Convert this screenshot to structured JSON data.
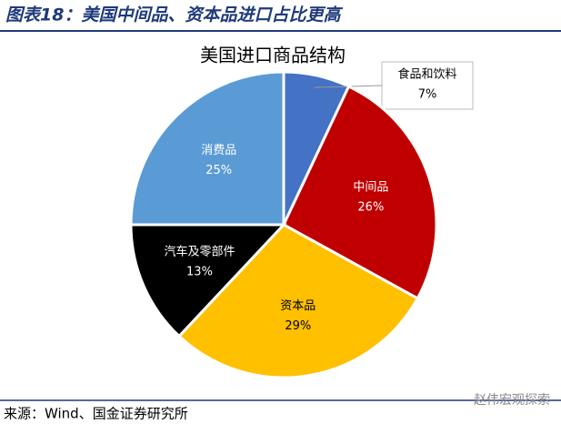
{
  "figure_title": "图表18：美国中间品、资本品进口占比更高",
  "chart_data": {
    "type": "pie",
    "title": "美国进口商品结构",
    "categories": [
      "食品和饮料",
      "中间品",
      "资本品",
      "汽车及零部件",
      "消费品"
    ],
    "values": [
      7,
      26,
      29,
      13,
      25
    ],
    "value_labels": [
      "7%",
      "26%",
      "29%",
      "13%",
      "25%"
    ],
    "colors": [
      "#4472c4",
      "#c00000",
      "#ffc000",
      "#000000",
      "#5b9bd5"
    ]
  },
  "source": "来源：Wind、国金证券研究所",
  "watermark": "赵伟宏观探索"
}
